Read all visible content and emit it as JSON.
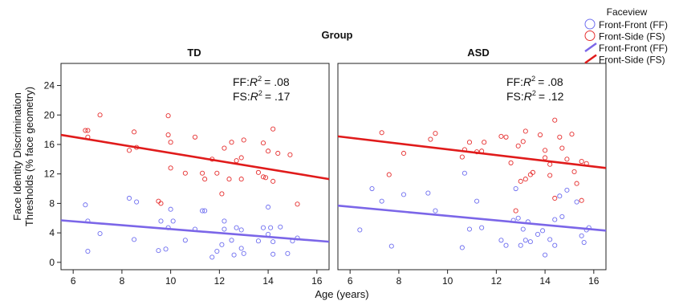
{
  "chart_data": {
    "type": "scatter",
    "group_title": "Group",
    "xlabel": "Age (years)",
    "ylabel_lines": [
      "Face Identity Discrimination",
      "Thresholds (% face geometry)"
    ],
    "xlim": [
      5.5,
      16.5
    ],
    "ylim": [
      -1,
      27
    ],
    "x_ticks": [
      6,
      8,
      10,
      12,
      14,
      16
    ],
    "y_ticks": [
      0,
      4,
      8,
      12,
      16,
      20,
      24
    ],
    "legend": {
      "title": "Faceview",
      "position": "top-right",
      "items": [
        {
          "label": "Front-Front (FF)",
          "kind": "point",
          "series": "FF"
        },
        {
          "label": "Front-Side (FS)",
          "kind": "point",
          "series": "FS"
        },
        {
          "label": "Front-Front (FF)",
          "kind": "line",
          "series": "FF"
        },
        {
          "label": "Front-Side (FS)",
          "kind": "line",
          "series": "FS"
        }
      ]
    },
    "colors": {
      "FF": "#6f6ff0",
      "FS": "#e63030",
      "FF_line": "#7b66e8",
      "FS_line": "#e01b1b"
    },
    "panels": [
      {
        "title": "TD",
        "annotation_ff_prefix": "FF:",
        "annotation_ff_value": "= .08",
        "annotation_fs_prefix": "FS:",
        "annotation_fs_value": "= .17",
        "fits": {
          "FF": [
            [
              5.5,
              5.7
            ],
            [
              16.5,
              2.8
            ]
          ],
          "FS": [
            [
              5.5,
              17.3
            ],
            [
              16.5,
              11.3
            ]
          ]
        },
        "points": {
          "FF": [
            [
              6.5,
              7.8
            ],
            [
              6.6,
              5.6
            ],
            [
              6.6,
              1.5
            ],
            [
              7.1,
              3.9
            ],
            [
              8.3,
              8.7
            ],
            [
              8.5,
              3.1
            ],
            [
              8.6,
              8.2
            ],
            [
              9.5,
              1.6
            ],
            [
              9.6,
              5.6
            ],
            [
              9.8,
              1.8
            ],
            [
              9.9,
              4.7
            ],
            [
              10.1,
              5.6
            ],
            [
              10.0,
              7.2
            ],
            [
              10.6,
              3.0
            ],
            [
              11.0,
              4.5
            ],
            [
              11.3,
              7.0
            ],
            [
              11.4,
              7.0
            ],
            [
              11.7,
              0.7
            ],
            [
              11.9,
              1.5
            ],
            [
              12.1,
              2.4
            ],
            [
              12.2,
              5.6
            ],
            [
              12.2,
              4.5
            ],
            [
              12.5,
              3.0
            ],
            [
              12.6,
              1.0
            ],
            [
              12.7,
              4.7
            ],
            [
              12.9,
              1.9
            ],
            [
              12.9,
              4.4
            ],
            [
              13.0,
              1.2
            ],
            [
              13.6,
              2.9
            ],
            [
              13.8,
              4.7
            ],
            [
              14.0,
              3.8
            ],
            [
              14.0,
              7.5
            ],
            [
              14.1,
              4.7
            ],
            [
              14.2,
              2.8
            ],
            [
              14.5,
              4.8
            ],
            [
              14.8,
              1.2
            ],
            [
              14.2,
              1.1
            ],
            [
              15.0,
              2.9
            ],
            [
              15.2,
              3.3
            ]
          ],
          "FS": [
            [
              6.5,
              17.9
            ],
            [
              6.6,
              17.9
            ],
            [
              6.6,
              17.0
            ],
            [
              7.1,
              20.0
            ],
            [
              8.3,
              15.2
            ],
            [
              8.5,
              17.7
            ],
            [
              8.6,
              15.6
            ],
            [
              9.5,
              8.3
            ],
            [
              9.6,
              8.0
            ],
            [
              9.9,
              17.3
            ],
            [
              9.9,
              19.9
            ],
            [
              10.0,
              16.3
            ],
            [
              10.0,
              12.8
            ],
            [
              10.6,
              12.1
            ],
            [
              11.0,
              17.0
            ],
            [
              11.3,
              12.1
            ],
            [
              11.4,
              11.3
            ],
            [
              11.7,
              14.0
            ],
            [
              11.9,
              12.1
            ],
            [
              12.1,
              9.3
            ],
            [
              12.2,
              15.5
            ],
            [
              12.4,
              11.3
            ],
            [
              12.5,
              16.3
            ],
            [
              12.7,
              13.8
            ],
            [
              12.9,
              14.2
            ],
            [
              12.9,
              11.3
            ],
            [
              13.0,
              16.6
            ],
            [
              13.6,
              12.2
            ],
            [
              13.8,
              11.6
            ],
            [
              13.9,
              11.5
            ],
            [
              14.0,
              15.1
            ],
            [
              14.2,
              18.1
            ],
            [
              14.4,
              14.8
            ],
            [
              14.2,
              11.0
            ],
            [
              14.9,
              14.6
            ],
            [
              15.2,
              7.9
            ],
            [
              13.8,
              16.2
            ]
          ]
        }
      },
      {
        "title": "ASD",
        "annotation_ff_prefix": "FF:",
        "annotation_ff_value": "= .08",
        "annotation_fs_prefix": "FS:",
        "annotation_fs_value": "= .12",
        "fits": {
          "FF": [
            [
              5.5,
              7.7
            ],
            [
              16.5,
              4.3
            ]
          ],
          "FS": [
            [
              5.5,
              17.1
            ],
            [
              16.5,
              12.8
            ]
          ]
        },
        "points": {
          "FF": [
            [
              6.4,
              4.4
            ],
            [
              6.9,
              10.0
            ],
            [
              7.3,
              8.3
            ],
            [
              7.7,
              2.2
            ],
            [
              8.2,
              9.2
            ],
            [
              9.2,
              9.4
            ],
            [
              9.5,
              7.0
            ],
            [
              10.6,
              2.0
            ],
            [
              10.7,
              12.1
            ],
            [
              10.9,
              4.5
            ],
            [
              11.2,
              8.3
            ],
            [
              11.4,
              4.7
            ],
            [
              12.2,
              3.0
            ],
            [
              12.4,
              2.3
            ],
            [
              12.7,
              5.7
            ],
            [
              12.8,
              10.0
            ],
            [
              12.9,
              6.0
            ],
            [
              13.0,
              2.3
            ],
            [
              13.1,
              4.5
            ],
            [
              13.2,
              3.0
            ],
            [
              13.3,
              5.5
            ],
            [
              13.4,
              2.8
            ],
            [
              13.7,
              3.8
            ],
            [
              13.9,
              4.3
            ],
            [
              14.0,
              1.0
            ],
            [
              14.2,
              3.1
            ],
            [
              14.4,
              5.8
            ],
            [
              14.4,
              2.3
            ],
            [
              14.6,
              9.0
            ],
            [
              14.7,
              6.2
            ],
            [
              14.9,
              9.8
            ],
            [
              15.3,
              8.2
            ],
            [
              15.5,
              3.6
            ],
            [
              15.7,
              4.4
            ],
            [
              15.8,
              4.7
            ],
            [
              15.6,
              2.7
            ]
          ],
          "FS": [
            [
              7.3,
              17.6
            ],
            [
              7.6,
              11.9
            ],
            [
              8.2,
              14.8
            ],
            [
              9.3,
              16.7
            ],
            [
              9.5,
              17.5
            ],
            [
              10.6,
              14.3
            ],
            [
              10.7,
              15.3
            ],
            [
              10.9,
              16.3
            ],
            [
              11.4,
              15.1
            ],
            [
              11.5,
              16.3
            ],
            [
              11.2,
              15.0
            ],
            [
              12.2,
              17.1
            ],
            [
              12.4,
              17.0
            ],
            [
              12.6,
              13.5
            ],
            [
              12.8,
              7.0
            ],
            [
              12.9,
              15.8
            ],
            [
              13.0,
              11.0
            ],
            [
              13.1,
              16.4
            ],
            [
              13.2,
              17.8
            ],
            [
              13.2,
              11.3
            ],
            [
              13.4,
              11.9
            ],
            [
              13.5,
              12.2
            ],
            [
              13.8,
              17.3
            ],
            [
              14.0,
              15.2
            ],
            [
              14.0,
              14.2
            ],
            [
              14.2,
              11.8
            ],
            [
              14.2,
              13.3
            ],
            [
              14.4,
              19.3
            ],
            [
              14.4,
              8.7
            ],
            [
              14.6,
              17.0
            ],
            [
              14.7,
              15.5
            ],
            [
              14.9,
              14.0
            ],
            [
              15.2,
              12.3
            ],
            [
              15.3,
              10.7
            ],
            [
              15.5,
              8.4
            ],
            [
              15.5,
              13.7
            ],
            [
              15.7,
              13.4
            ],
            [
              15.1,
              17.4
            ]
          ]
        }
      }
    ]
  }
}
